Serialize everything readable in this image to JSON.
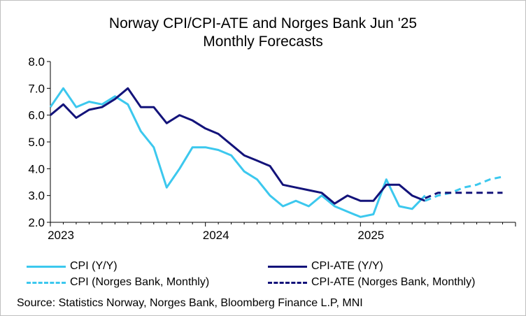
{
  "chart_data": {
    "type": "line",
    "title": [
      "Norway CPI/CPI-ATE and Norges Bank Jun '25",
      "Monthly Forecasts"
    ],
    "xlabel": "",
    "ylabel": "",
    "ylim": [
      2.0,
      8.0
    ],
    "yticks": [
      "2.0",
      "3.0",
      "4.0",
      "5.0",
      "6.0",
      "7.0",
      "8.0"
    ],
    "xticks": [
      {
        "label": "2023",
        "index": 0
      },
      {
        "label": "2024",
        "index": 12
      },
      {
        "label": "2025",
        "index": 24
      }
    ],
    "months_span": 36,
    "series": [
      {
        "name": "CPI (Y/Y)",
        "color": "#3cc8ee",
        "style": "solid",
        "start_index": 0,
        "values": [
          6.3,
          7.0,
          6.3,
          6.5,
          6.4,
          6.7,
          6.4,
          5.4,
          4.8,
          3.3,
          4.0,
          4.8,
          4.8,
          4.7,
          4.5,
          3.9,
          3.6,
          3.0,
          2.6,
          2.8,
          2.6,
          3.0,
          2.6,
          2.4,
          2.2,
          2.3,
          3.6,
          2.6,
          2.5,
          3.0
        ]
      },
      {
        "name": "CPI-ATE (Y/Y)",
        "color": "#13137a",
        "style": "solid",
        "start_index": 0,
        "values": [
          6.0,
          6.4,
          5.9,
          6.2,
          6.3,
          6.6,
          7.0,
          6.3,
          6.3,
          5.7,
          6.0,
          5.8,
          5.5,
          5.3,
          4.9,
          4.5,
          4.3,
          4.1,
          3.4,
          3.3,
          3.2,
          3.1,
          2.7,
          3.0,
          2.8,
          2.8,
          3.4,
          3.4,
          3.0,
          2.8
        ]
      },
      {
        "name": "CPI (Norges Bank, Monthly)",
        "color": "#3cc8ee",
        "style": "dashed",
        "start_index": 29,
        "values": [
          2.8,
          3.0,
          3.1,
          3.3,
          3.4,
          3.6,
          3.7
        ]
      },
      {
        "name": "CPI-ATE (Norges Bank, Monthly)",
        "color": "#13137a",
        "style": "dashed",
        "start_index": 29,
        "values": [
          2.9,
          3.1,
          3.1,
          3.1,
          3.1,
          3.1,
          3.1
        ]
      }
    ],
    "legend": {
      "placement": "bottom",
      "entries": [
        "CPI (Y/Y)",
        "CPI-ATE (Y/Y)",
        "CPI (Norges Bank, Monthly)",
        "CPI-ATE (Norges Bank, Monthly)"
      ]
    },
    "grid": false,
    "source": "Source: Statistics Norway, Norges Bank, Bloomberg Finance L.P, MNI"
  }
}
